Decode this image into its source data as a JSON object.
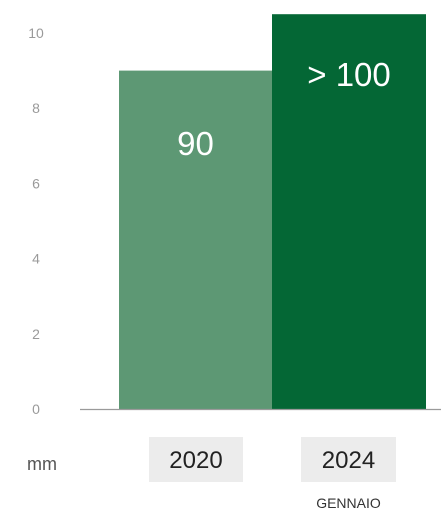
{
  "chart_data": {
    "type": "bar",
    "categories": [
      "2020",
      "2024"
    ],
    "values": [
      9.0,
      10.5
    ],
    "data_labels": [
      "90",
      "> 100"
    ],
    "category_sublabels": [
      "",
      "GENNAIO"
    ],
    "unit_label": "mm",
    "yticks": [
      "0",
      "2",
      "4",
      "6",
      "8",
      "10"
    ],
    "ylim": [
      0,
      10.5
    ],
    "grid": false,
    "colors": [
      "#5d9874",
      "#046735"
    ],
    "category_box_color": "#ececec",
    "axis_color": "#9a9a9a"
  }
}
